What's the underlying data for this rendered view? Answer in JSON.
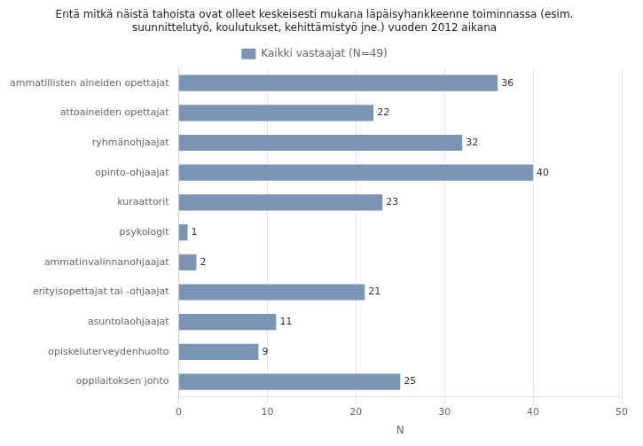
{
  "chart_data": {
    "type": "bar",
    "orientation": "horizontal",
    "title": "Entä mitkä näistä tahoista ovat olleet keskeisesti mukana läpäisyhankkeenne toiminnassa (esim.\nsuunnittelutyö, koulutukset, kehittämistyö jne.) vuoden 2012 aikana",
    "categories": [
      "ammatillisten aineiden opettajat",
      "attoaineiden opettajat",
      "ryhmänohjaajat",
      "opinto-ohjaajat",
      "kuraattorit",
      "psykologit",
      "ammatinvalinnanohjaajat",
      "erityisopettajat tai -ohjaajat",
      "asuntolaohjaajat",
      "opiskeluterveydenhuolto",
      "oppilaitoksen johto"
    ],
    "series": [
      {
        "name": "Kaikki vastaajat (N=49)",
        "color": "#7b93b4",
        "values": [
          36,
          22,
          32,
          40,
          23,
          1,
          2,
          21,
          11,
          9,
          25
        ]
      }
    ],
    "xlabel": "N",
    "xlim": [
      0,
      50
    ],
    "xticks": [
      0,
      10,
      20,
      30,
      40,
      50
    ],
    "grid": true,
    "legend": "top",
    "data_labels": true
  }
}
